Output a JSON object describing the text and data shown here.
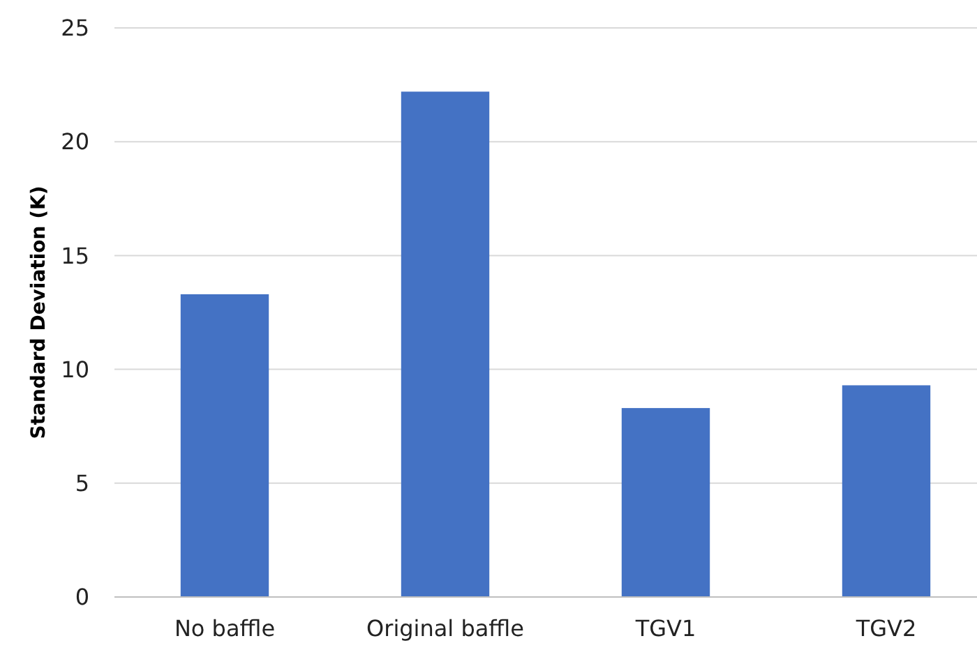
{
  "chart_data": {
    "type": "bar",
    "ylabel": "Standard Deviation (K)",
    "categories": [
      "No baffle",
      "Original baffle",
      "TGV1",
      "TGV2"
    ],
    "values": [
      13.3,
      22.2,
      8.3,
      9.3
    ],
    "color": "#4472c4",
    "ylim": [
      0,
      25
    ],
    "yticks": [
      0,
      5,
      10,
      15,
      20,
      25
    ],
    "grid": "y"
  }
}
